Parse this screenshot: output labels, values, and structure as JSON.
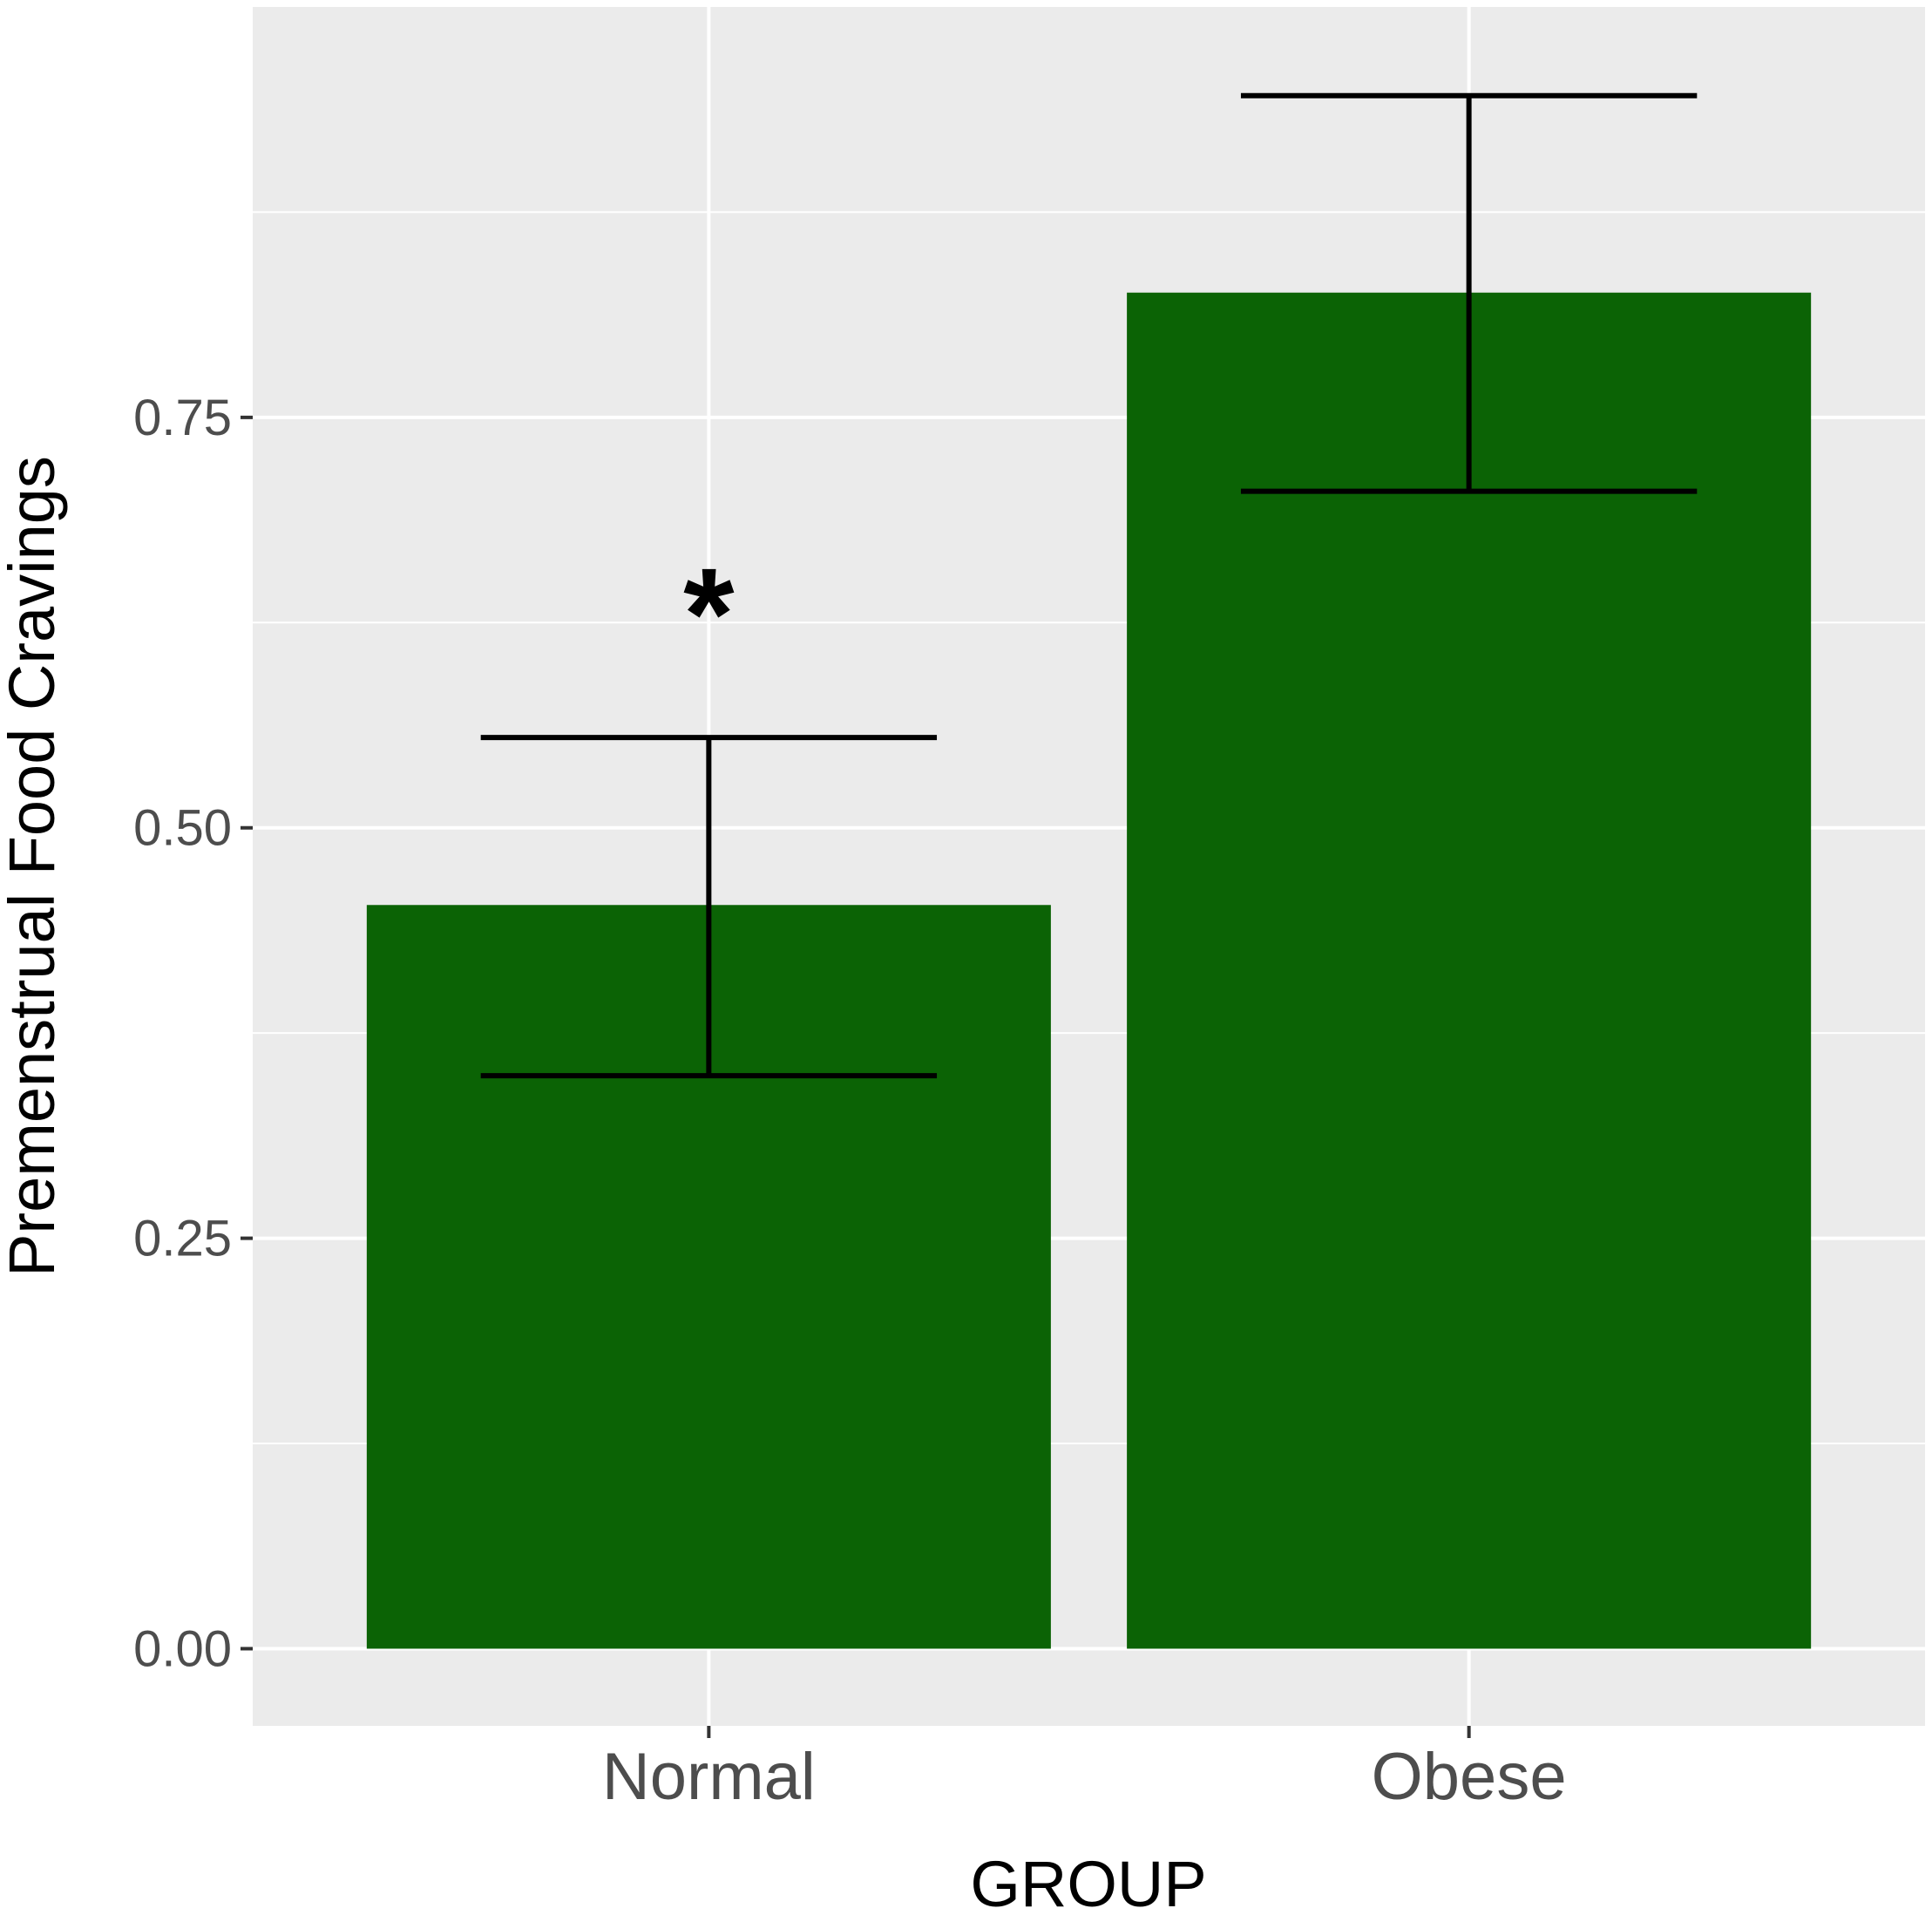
{
  "chart_data": {
    "type": "bar",
    "title": "",
    "xlabel": "GROUP",
    "ylabel": "Premenstrual Food Cravings",
    "categories": [
      "Normal",
      "Obese"
    ],
    "values": [
      0.453,
      0.826
    ],
    "error_low": [
      0.349,
      0.705
    ],
    "error_high": [
      0.555,
      0.946
    ],
    "ylim": [
      -0.047,
      1.0
    ],
    "y_ticks": [
      0.0,
      0.25,
      0.5,
      0.75
    ],
    "y_tick_labels": [
      "0.00",
      "0.25",
      "0.50",
      "0.75"
    ],
    "annotations": [
      {
        "category": "Normal",
        "text": "*",
        "y": 0.64
      }
    ],
    "bar_color": "#0b6305",
    "panel_color": "#ebebeb",
    "grid": true,
    "legend": "none"
  }
}
